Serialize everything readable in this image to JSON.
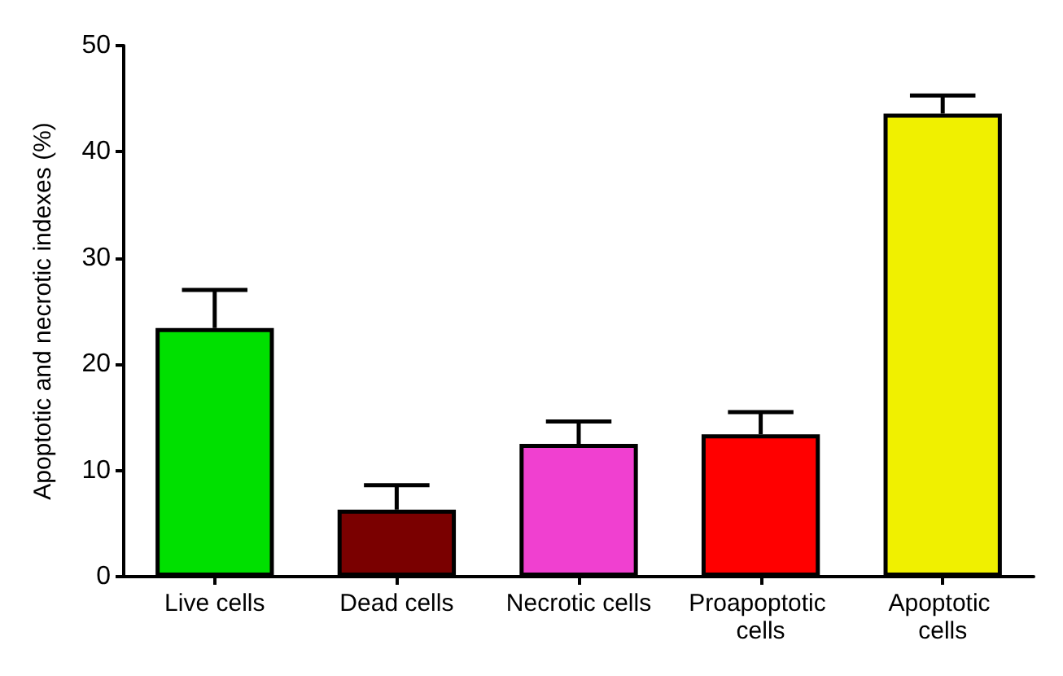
{
  "chart_data": {
    "type": "bar",
    "ylabel": "Apoptotic and necrotic indexes (%)",
    "categories": [
      "Live cells",
      "Dead cells",
      "Necrotic cells",
      "Proapoptotic cells",
      "Apoptotic cells"
    ],
    "values": [
      23.4,
      6.3,
      12.5,
      13.4,
      43.6
    ],
    "colors": [
      "#00e000",
      "#7a0000",
      "#f040d0",
      "#ff0000",
      "#f0f000"
    ],
    "errors": [
      [
        23.4,
        27.0
      ],
      [
        6.3,
        8.6
      ],
      [
        12.5,
        14.6
      ],
      [
        13.4,
        15.5
      ],
      [
        43.6,
        45.3
      ]
    ],
    "ylim": [
      0,
      50
    ],
    "yticks": [
      0,
      10,
      20,
      30,
      40,
      50
    ],
    "grid": false
  }
}
